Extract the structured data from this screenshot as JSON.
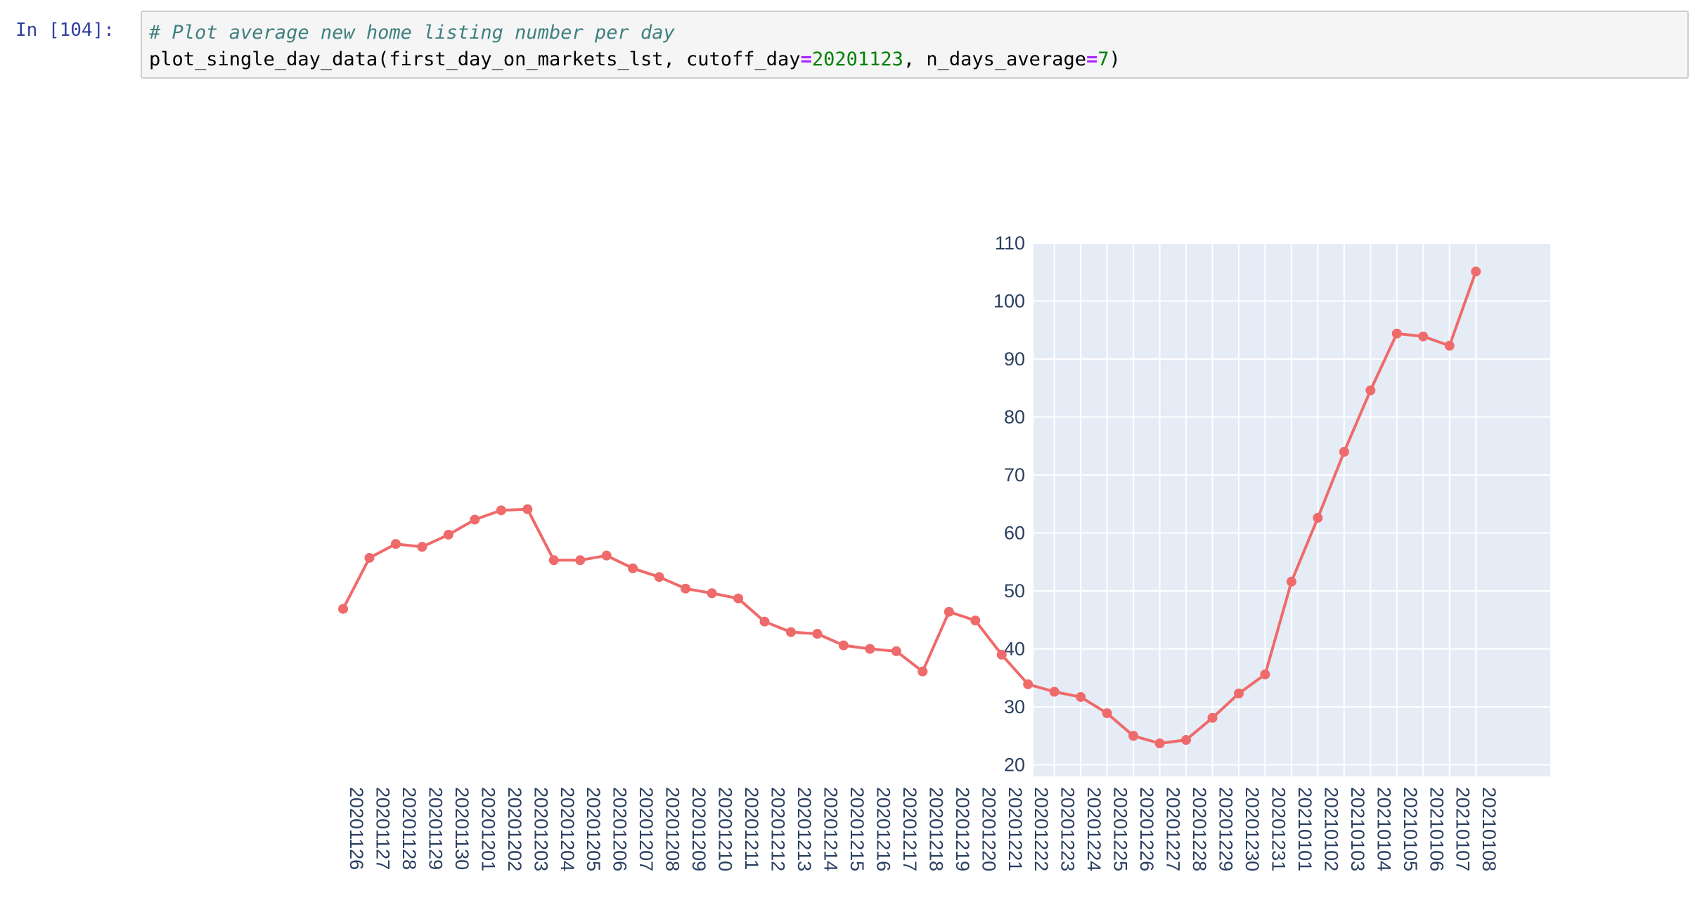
{
  "cell": {
    "prompt": "In [104]:",
    "comment": "# Plot average new home listing number per day",
    "code_prefix": "plot_single_day_data(first_day_on_markets_lst, cutoff_day",
    "op1": "=",
    "num1": "20201123",
    "code_mid": ", n_days_average",
    "op2": "=",
    "num2": "7",
    "code_suffix": ")"
  },
  "colors": {
    "line": "#ef6a6a",
    "plot_bg": "#e5ecf6",
    "grid": "#ffffff",
    "tick_text": "#2a3f5f"
  },
  "chart_data": {
    "type": "line",
    "mode": "lines+markers",
    "title": "",
    "xlabel": "",
    "ylabel": "",
    "ylim": [
      18,
      110
    ],
    "yticks": [
      20,
      30,
      40,
      50,
      60,
      70,
      80,
      90,
      100,
      110
    ],
    "grid": true,
    "x_tick_orientation": "vertical",
    "categories": [
      "20201126",
      "20201127",
      "20201128",
      "20201129",
      "20201130",
      "20201201",
      "20201202",
      "20201203",
      "20201204",
      "20201205",
      "20201206",
      "20201207",
      "20201208",
      "20201209",
      "20201210",
      "20201211",
      "20201212",
      "20201213",
      "20201214",
      "20201215",
      "20201216",
      "20201217",
      "20201218",
      "20201219",
      "20201220",
      "20201221",
      "20201222",
      "20201223",
      "20201224",
      "20201225",
      "20201226",
      "20201227",
      "20201228",
      "20201229",
      "20201230",
      "20201231",
      "20210101",
      "20210102",
      "20210103",
      "20210104",
      "20210105",
      "20210106",
      "20210107",
      "20210108"
    ],
    "values": [
      46.9,
      55.7,
      58.1,
      57.6,
      59.7,
      62.3,
      63.9,
      64.1,
      55.3,
      55.3,
      56.1,
      53.9,
      52.4,
      50.4,
      49.6,
      48.7,
      44.7,
      42.9,
      42.6,
      40.6,
      40.0,
      39.6,
      36.1,
      46.4,
      44.9,
      39.0,
      33.9,
      32.6,
      31.7,
      28.9,
      25.0,
      23.7,
      24.3,
      28.1,
      32.3,
      35.6,
      51.6,
      62.6,
      74.0,
      84.6,
      94.4,
      93.9,
      92.3,
      105.1
    ]
  }
}
